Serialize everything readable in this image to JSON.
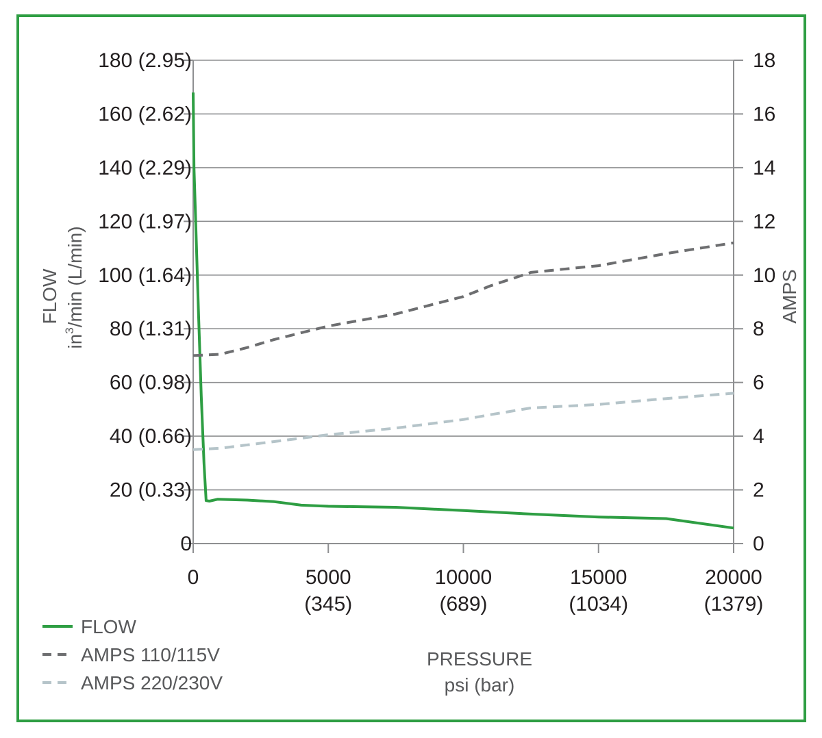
{
  "colors": {
    "border": "#2e9e43",
    "grid": "#8e8f91",
    "flow": "#2e9e43",
    "amps_110": "#6d6e70",
    "amps_220": "#b5c4c9"
  },
  "chart_data": {
    "type": "line",
    "x_axis": {
      "title_line1": "PRESSURE",
      "title_line2": "psi (bar)",
      "range": [
        0,
        20000
      ],
      "ticks": [
        {
          "value": 0,
          "label": "0",
          "sublabel": ""
        },
        {
          "value": 5000,
          "label": "5000",
          "sublabel": "(345)"
        },
        {
          "value": 10000,
          "label": "10000",
          "sublabel": "(689)"
        },
        {
          "value": 15000,
          "label": "15000",
          "sublabel": "(1034)"
        },
        {
          "value": 20000,
          "label": "20000",
          "sublabel": "(1379)"
        }
      ]
    },
    "y_left": {
      "title_line1": "FLOW",
      "title_line2_pre": "in",
      "title_line2_sup": "3",
      "title_line2_post": "/min  (L/min)",
      "range": [
        0,
        180
      ],
      "ticks": [
        {
          "value": 0,
          "label": "0"
        },
        {
          "value": 20,
          "label": "20 (0.33)"
        },
        {
          "value": 40,
          "label": "40 (0.66)"
        },
        {
          "value": 60,
          "label": "60 (0.98)"
        },
        {
          "value": 80,
          "label": "80 (1.31)"
        },
        {
          "value": 100,
          "label": "100 (1.64)"
        },
        {
          "value": 120,
          "label": "120 (1.97)"
        },
        {
          "value": 140,
          "label": "140 (2.29)"
        },
        {
          "value": 160,
          "label": "160 (2.62)"
        },
        {
          "value": 180,
          "label": "180 (2.95)"
        }
      ]
    },
    "y_right": {
      "title": "AMPS",
      "range": [
        0,
        18
      ],
      "ticks": [
        {
          "value": 0,
          "label": "0"
        },
        {
          "value": 2,
          "label": "2"
        },
        {
          "value": 4,
          "label": "4"
        },
        {
          "value": 6,
          "label": "6"
        },
        {
          "value": 8,
          "label": "8"
        },
        {
          "value": 10,
          "label": "10"
        },
        {
          "value": 12,
          "label": "12"
        },
        {
          "value": 14,
          "label": "14"
        },
        {
          "value": 16,
          "label": "16"
        },
        {
          "value": 18,
          "label": "18"
        }
      ]
    },
    "grid": true,
    "legend_position": "bottom-left",
    "series": [
      {
        "name": "FLOW",
        "axis": "left",
        "style": "solid",
        "points": [
          [
            0,
            168
          ],
          [
            30,
            140
          ],
          [
            100,
            118
          ],
          [
            200,
            85
          ],
          [
            300,
            55
          ],
          [
            400,
            30
          ],
          [
            480,
            16
          ],
          [
            600,
            15.8
          ],
          [
            900,
            16.5
          ],
          [
            2000,
            16.2
          ],
          [
            3000,
            15.6
          ],
          [
            4000,
            14.3
          ],
          [
            5000,
            13.9
          ],
          [
            7500,
            13.5
          ],
          [
            10000,
            12.3
          ],
          [
            12500,
            11
          ],
          [
            15000,
            9.9
          ],
          [
            17500,
            9.3
          ],
          [
            20000,
            5.8
          ]
        ]
      },
      {
        "name": "AMPS 110/115V",
        "axis": "right",
        "style": "dashed",
        "points": [
          [
            0,
            7.0
          ],
          [
            1000,
            7.05
          ],
          [
            2000,
            7.3
          ],
          [
            3000,
            7.6
          ],
          [
            4000,
            7.85
          ],
          [
            5000,
            8.1
          ],
          [
            7500,
            8.55
          ],
          [
            10000,
            9.2
          ],
          [
            11000,
            9.6
          ],
          [
            12500,
            10.1
          ],
          [
            15000,
            10.35
          ],
          [
            17500,
            10.8
          ],
          [
            20000,
            11.2
          ]
        ]
      },
      {
        "name": "AMPS 220/230V",
        "axis": "right",
        "style": "dashed",
        "points": [
          [
            0,
            3.5
          ],
          [
            1000,
            3.55
          ],
          [
            3000,
            3.8
          ],
          [
            5000,
            4.05
          ],
          [
            7500,
            4.3
          ],
          [
            10000,
            4.62
          ],
          [
            11000,
            4.8
          ],
          [
            12500,
            5.05
          ],
          [
            15000,
            5.18
          ],
          [
            17500,
            5.4
          ],
          [
            20000,
            5.6
          ]
        ]
      }
    ]
  }
}
